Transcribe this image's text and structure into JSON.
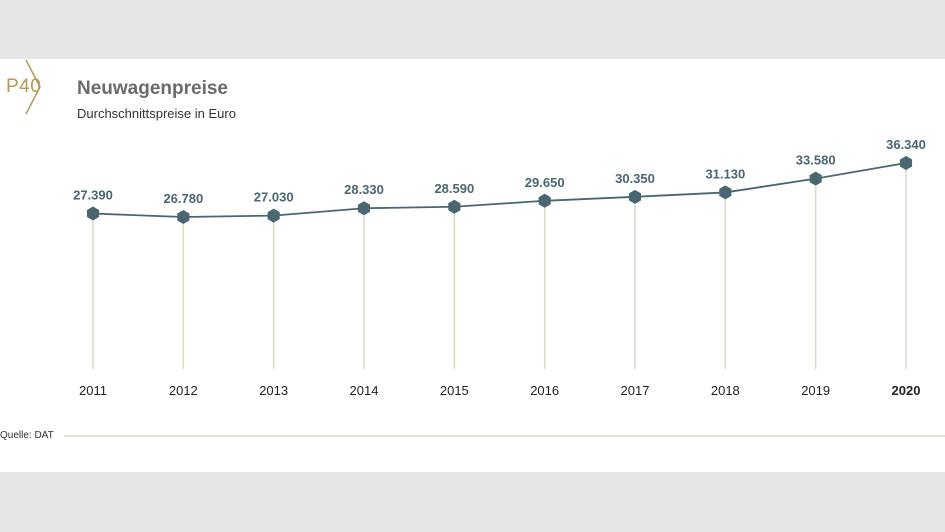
{
  "badge": "P40",
  "title": "Neuwagenpreise",
  "subtitle": "Durchschnittspreise in Euro",
  "source": "Quelle: DAT",
  "colors": {
    "line": "#4a6670",
    "marker": "#4a6670",
    "stem": "#dcd9c8",
    "label": "#4a6670",
    "gold": "#b59a56",
    "background": "#e6e6e6"
  },
  "chart_data": {
    "type": "line",
    "categories": [
      "2011",
      "2012",
      "2013",
      "2014",
      "2015",
      "2016",
      "2017",
      "2018",
      "2019",
      "2020"
    ],
    "values": [
      27390,
      26780,
      27030,
      28330,
      28590,
      29650,
      30350,
      31130,
      33580,
      36340
    ],
    "value_labels": [
      "27.390",
      "26.780",
      "27.030",
      "28.330",
      "28.590",
      "29.650",
      "30.350",
      "31.130",
      "33.580",
      "36.340"
    ],
    "bold_category": "2020",
    "title": "Neuwagenpreise",
    "subtitle": "Durchschnittspreise in Euro",
    "xlabel": "",
    "ylabel": "",
    "grid": false,
    "legend": "none"
  }
}
